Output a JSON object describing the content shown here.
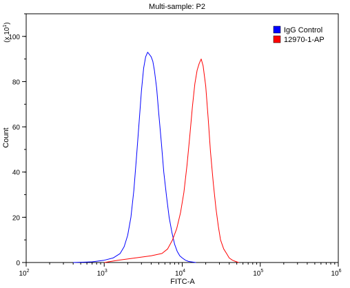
{
  "chart_data": {
    "type": "line",
    "title": "Multi-sample: P2",
    "xlabel": "FITC-A",
    "ylabel": "Count",
    "y_multiplier": "(x 10",
    "y_multiplier_exp": "1",
    "x_scale": "log",
    "xlim": [
      100,
      1000000
    ],
    "ylim": [
      0,
      110
    ],
    "x_ticks": [
      {
        "value": 100,
        "base": "10",
        "exp": "2"
      },
      {
        "value": 1000,
        "base": "10",
        "exp": "3"
      },
      {
        "value": 10000,
        "base": "10",
        "exp": "4"
      },
      {
        "value": 100000,
        "base": "10",
        "exp": "5"
      },
      {
        "value": 1000000,
        "base": "10",
        "exp": "6"
      }
    ],
    "y_ticks": [
      {
        "value": 0,
        "label": "0"
      },
      {
        "value": 20,
        "label": "20"
      },
      {
        "value": 40,
        "label": "40"
      },
      {
        "value": 60,
        "label": "60"
      },
      {
        "value": 80,
        "label": "80"
      },
      {
        "value": 100,
        "label": "100"
      }
    ],
    "legend_position": "top-right",
    "series": [
      {
        "name": "IgG Control",
        "color": "#0000ff",
        "x": [
          400,
          700,
          1000,
          1300,
          1600,
          1800,
          2000,
          2200,
          2400,
          2600,
          2800,
          3000,
          3200,
          3400,
          3600,
          3800,
          4000,
          4200,
          4400,
          4700,
          5000,
          5400,
          5800,
          6300,
          6800,
          7400,
          8000,
          8600,
          9300,
          10000,
          11000,
          12000,
          13000,
          15000
        ],
        "y": [
          0,
          0.3,
          1,
          2,
          4,
          7,
          12,
          20,
          32,
          47,
          62,
          76,
          86,
          91,
          93,
          92,
          91,
          89,
          85,
          77,
          66,
          53,
          40,
          29,
          20,
          13,
          8,
          5,
          3,
          2,
          1,
          0.5,
          0.3,
          0
        ]
      },
      {
        "name": "12970-1-AP",
        "color": "#ff0000",
        "x": [
          1000,
          1500,
          2500,
          4000,
          5500,
          6500,
          7500,
          8500,
          9500,
          10500,
          11500,
          12500,
          13500,
          14500,
          15500,
          16500,
          17500,
          18500,
          20000,
          21500,
          23000,
          25000,
          27000,
          29000,
          31000,
          34000,
          37000,
          40000,
          44000,
          48000,
          53000
        ],
        "y": [
          0,
          1,
          2,
          3,
          4,
          6,
          10,
          15,
          22,
          31,
          43,
          56,
          69,
          79,
          85,
          88,
          90,
          87,
          78,
          64,
          49,
          35,
          24,
          16,
          10,
          6,
          4,
          2,
          1,
          0.5,
          0
        ]
      }
    ]
  }
}
